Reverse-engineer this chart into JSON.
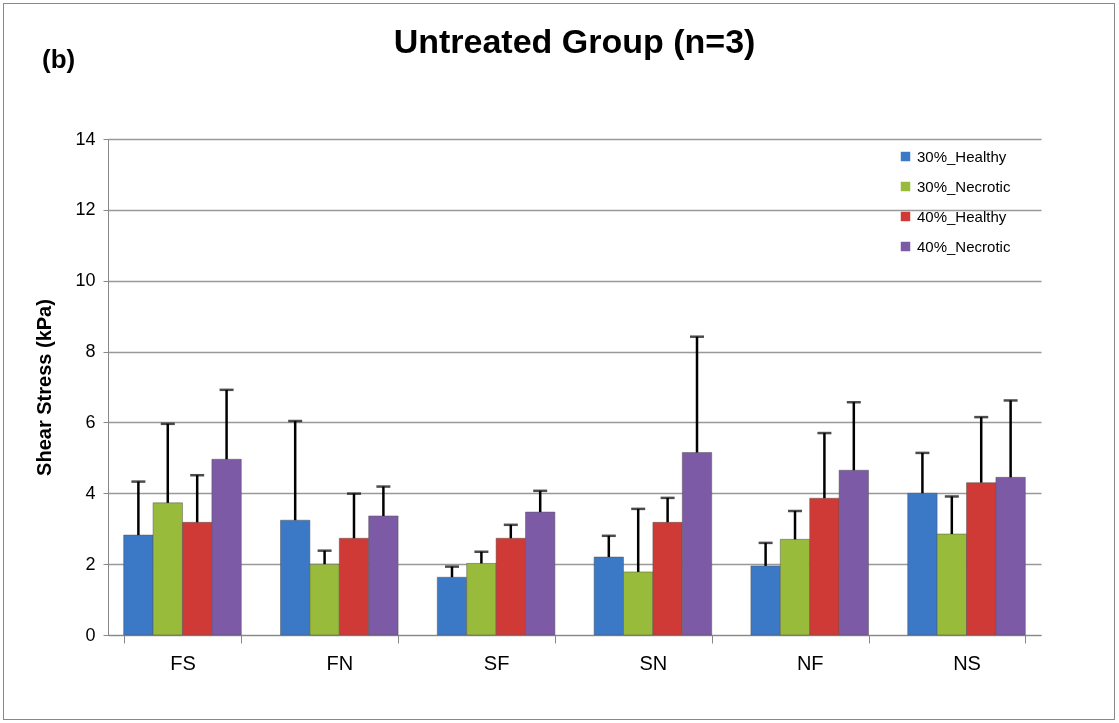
{
  "chart_data": {
    "type": "bar",
    "title": "Untreated Group (n=3)",
    "ylabel": "Shear Stress (kPa)",
    "annotations": [
      "(b)"
    ],
    "categories": [
      "FS",
      "FN",
      "SF",
      "SN",
      "NF",
      "NS"
    ],
    "series": [
      {
        "name": "30%_Healthy",
        "color": "#3b78c6",
        "values": [
          2.82,
          3.24,
          1.63,
          2.2,
          1.95,
          4.0
        ],
        "errors": [
          [
            2.82,
            4.33
          ],
          [
            3.24,
            6.04
          ],
          [
            1.63,
            1.93
          ],
          [
            2.2,
            2.8
          ],
          [
            1.95,
            2.6
          ],
          [
            4.0,
            5.14
          ]
        ]
      },
      {
        "name": "30%_Necrotic",
        "color": "#98bb3c",
        "values": [
          3.73,
          2.0,
          2.02,
          1.78,
          2.7,
          2.85
        ],
        "errors": [
          [
            3.73,
            5.96
          ],
          [
            2.0,
            2.38
          ],
          [
            2.02,
            2.35
          ],
          [
            1.78,
            3.56
          ],
          [
            2.7,
            3.5
          ],
          [
            2.85,
            3.91
          ]
        ]
      },
      {
        "name": "40%_Healthy",
        "color": "#d03a36",
        "values": [
          3.18,
          2.73,
          2.73,
          3.18,
          3.86,
          4.3
        ],
        "errors": [
          [
            3.18,
            4.51
          ],
          [
            2.73,
            3.99
          ],
          [
            2.73,
            3.11
          ],
          [
            3.18,
            3.87
          ],
          [
            3.86,
            5.7
          ],
          [
            4.3,
            6.15
          ]
        ]
      },
      {
        "name": "40%_Necrotic",
        "color": "#7d5aa6",
        "values": [
          4.96,
          3.36,
          3.47,
          5.15,
          4.65,
          4.45
        ],
        "errors": [
          [
            4.96,
            6.92
          ],
          [
            3.36,
            4.19
          ],
          [
            3.47,
            4.07
          ],
          [
            5.15,
            8.42
          ],
          [
            4.65,
            6.57
          ],
          [
            4.45,
            6.62
          ]
        ]
      }
    ],
    "ylim": [
      0,
      14
    ],
    "yticks": [
      0,
      2,
      4,
      6,
      8,
      10,
      12,
      14
    ],
    "grid": "y",
    "legend": "top right"
  }
}
